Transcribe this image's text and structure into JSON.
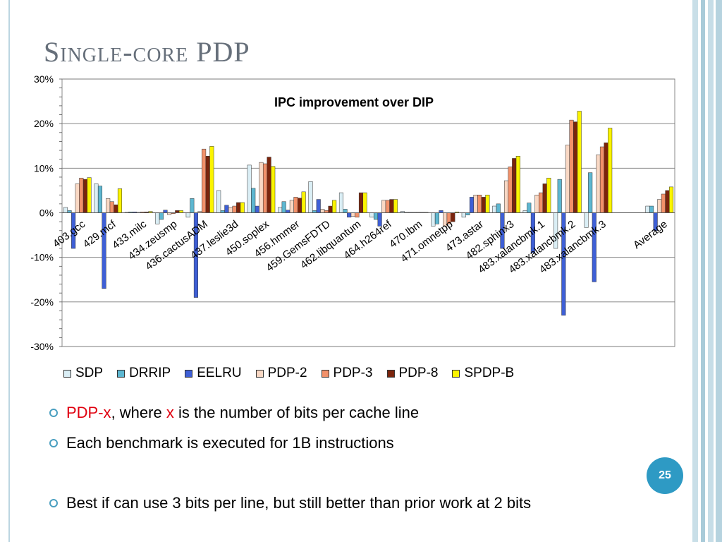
{
  "slide": {
    "title": "Single-core PDP",
    "page_number": "25"
  },
  "bullets": [
    {
      "parts": [
        {
          "text": "PDP-x",
          "red": true
        },
        {
          "text": ", where ",
          "red": false
        },
        {
          "text": "x",
          "red": true
        },
        {
          "text": " is the number of bits per cache line",
          "red": false
        }
      ]
    },
    {
      "parts": [
        {
          "text": "Each benchmark is executed for 1B instructions",
          "red": false
        }
      ]
    },
    {
      "parts": [
        {
          "text": "Best if can use 3 bits per line, but still better than prior work at 2 bits",
          "red": false
        }
      ]
    }
  ],
  "chart_data": {
    "type": "bar",
    "title": "IPC improvement over DIP",
    "ylim": [
      -30,
      30
    ],
    "yticks": [
      -30,
      -20,
      -10,
      0,
      10,
      20,
      30
    ],
    "ytick_labels": [
      "-30%",
      "-20%",
      "-10%",
      "0%",
      "10%",
      "20%",
      "30%"
    ],
    "grid": true,
    "legend_position": "bottom",
    "categories": [
      "403.gcc",
      "429.mcf",
      "433.milc",
      "434.zeusmp",
      "436.cactusADM",
      "437.leslie3d",
      "450.soplex",
      "456.hmmer",
      "459.GemsFDTD",
      "462.libquantum",
      "464.h264ref",
      "470.lbm",
      "471.omnetpp",
      "473.astar",
      "482.sphinx3",
      "483.xalancbmk.1",
      "483.xalancbmk.2",
      "483.xalancbmk.3",
      "",
      "Average"
    ],
    "series": [
      {
        "name": "SDP",
        "color": "#daeef5",
        "values": [
          1.2,
          6.5,
          0.1,
          -2.5,
          -1.0,
          5.0,
          10.7,
          1.2,
          7.0,
          4.5,
          -1.0,
          0.3,
          -3.0,
          -1.0,
          1.5,
          0.5,
          -8.0,
          -3.3,
          0,
          1.5
        ]
      },
      {
        "name": "DRRIP",
        "color": "#5db7d1",
        "values": [
          0.5,
          6.0,
          0.2,
          -1.5,
          3.2,
          0.5,
          5.5,
          2.5,
          0.5,
          0.8,
          -1.5,
          0.1,
          -2.5,
          -0.5,
          2.0,
          2.2,
          7.5,
          9.0,
          0,
          1.5
        ]
      },
      {
        "name": "EELRU",
        "color": "#3e5fd6",
        "values": [
          -8.0,
          -17.0,
          0.2,
          0.6,
          -19.0,
          1.7,
          1.5,
          0.6,
          3.0,
          -1.0,
          -3.0,
          0.1,
          0.5,
          3.5,
          -8.0,
          -9.0,
          -23.0,
          -15.5,
          0,
          -4.0
        ]
      },
      {
        "name": "PDP-2",
        "color": "#f9d8c4",
        "values": [
          6.5,
          3.2,
          0.1,
          -0.4,
          0.3,
          1.2,
          11.3,
          2.8,
          0.8,
          -0.8,
          2.8,
          0.1,
          -3.0,
          4.0,
          7.2,
          4.0,
          15.2,
          13.0,
          0,
          3.0
        ]
      },
      {
        "name": "PDP-3",
        "color": "#f2916a",
        "values": [
          7.8,
          2.5,
          0.2,
          -0.2,
          14.3,
          1.5,
          11.0,
          3.5,
          0.5,
          -1.0,
          2.8,
          0.1,
          -2.5,
          4.0,
          10.3,
          4.5,
          20.8,
          14.8,
          0,
          4.2
        ]
      },
      {
        "name": "PDP-8",
        "color": "#7a240c",
        "values": [
          7.5,
          1.8,
          0.2,
          0.5,
          12.7,
          2.3,
          12.5,
          3.3,
          1.5,
          4.5,
          3.0,
          0.1,
          -2.0,
          3.5,
          12.2,
          6.5,
          20.4,
          15.7,
          0,
          5.0
        ]
      },
      {
        "name": "SPDP-B",
        "color": "#fbf400",
        "values": [
          7.9,
          5.4,
          0.3,
          0.5,
          14.9,
          2.3,
          10.4,
          4.7,
          2.8,
          4.5,
          3.0,
          0.1,
          0.2,
          4.0,
          12.7,
          7.8,
          22.8,
          19.0,
          0,
          5.8
        ]
      }
    ]
  }
}
